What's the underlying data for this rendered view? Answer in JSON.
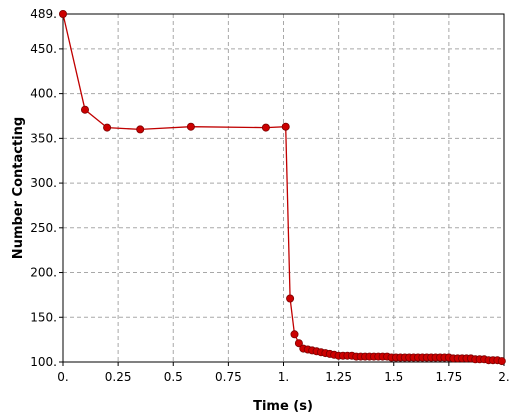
{
  "chart_data": {
    "type": "line",
    "title": "",
    "xlabel": "Time (s)",
    "ylabel": "Number Contacting",
    "xlim": [
      0,
      2
    ],
    "ylim": [
      100,
      489
    ],
    "x_ticks": [
      0,
      0.25,
      0.5,
      0.75,
      1,
      1.25,
      1.5,
      1.75,
      2
    ],
    "x_tick_labels": [
      "0.",
      "0.25",
      "0.5",
      "0.75",
      "1.",
      "1.25",
      "1.5",
      "1.75",
      "2."
    ],
    "y_ticks": [
      100,
      150,
      200,
      250,
      300,
      350,
      400,
      450,
      489
    ],
    "y_tick_labels": [
      "100.",
      "150.",
      "200.",
      "250.",
      "300.",
      "350.",
      "400.",
      "450.",
      "489."
    ],
    "grid": true,
    "legend": "none",
    "line_color": "#c00000",
    "marker_color": "#cc0000",
    "series": [
      {
        "x": [
          0.0,
          0.1,
          0.2,
          0.35,
          0.58,
          0.92,
          1.01,
          1.03,
          1.05,
          1.07,
          1.09,
          1.11,
          1.13,
          1.15,
          1.17,
          1.19,
          1.21,
          1.23,
          1.25,
          1.27,
          1.29,
          1.31,
          1.33,
          1.35,
          1.37,
          1.39,
          1.41,
          1.43,
          1.45,
          1.47,
          1.49,
          1.51,
          1.53,
          1.55,
          1.57,
          1.59,
          1.61,
          1.63,
          1.65,
          1.67,
          1.69,
          1.71,
          1.73,
          1.75,
          1.77,
          1.79,
          1.81,
          1.83,
          1.85,
          1.87,
          1.89,
          1.91,
          1.93,
          1.95,
          1.97,
          1.99
        ],
        "values": [
          489,
          382,
          362,
          360,
          363,
          362,
          363,
          171,
          131,
          121,
          115,
          114,
          113,
          112,
          111,
          110,
          109,
          108,
          107,
          107,
          107,
          107,
          106,
          106,
          106,
          106,
          106,
          106,
          106,
          106,
          105,
          105,
          105,
          105,
          105,
          105,
          105,
          105,
          105,
          105,
          105,
          105,
          105,
          105,
          104,
          104,
          104,
          104,
          104,
          103,
          103,
          103,
          102,
          102,
          102,
          101
        ]
      }
    ]
  }
}
